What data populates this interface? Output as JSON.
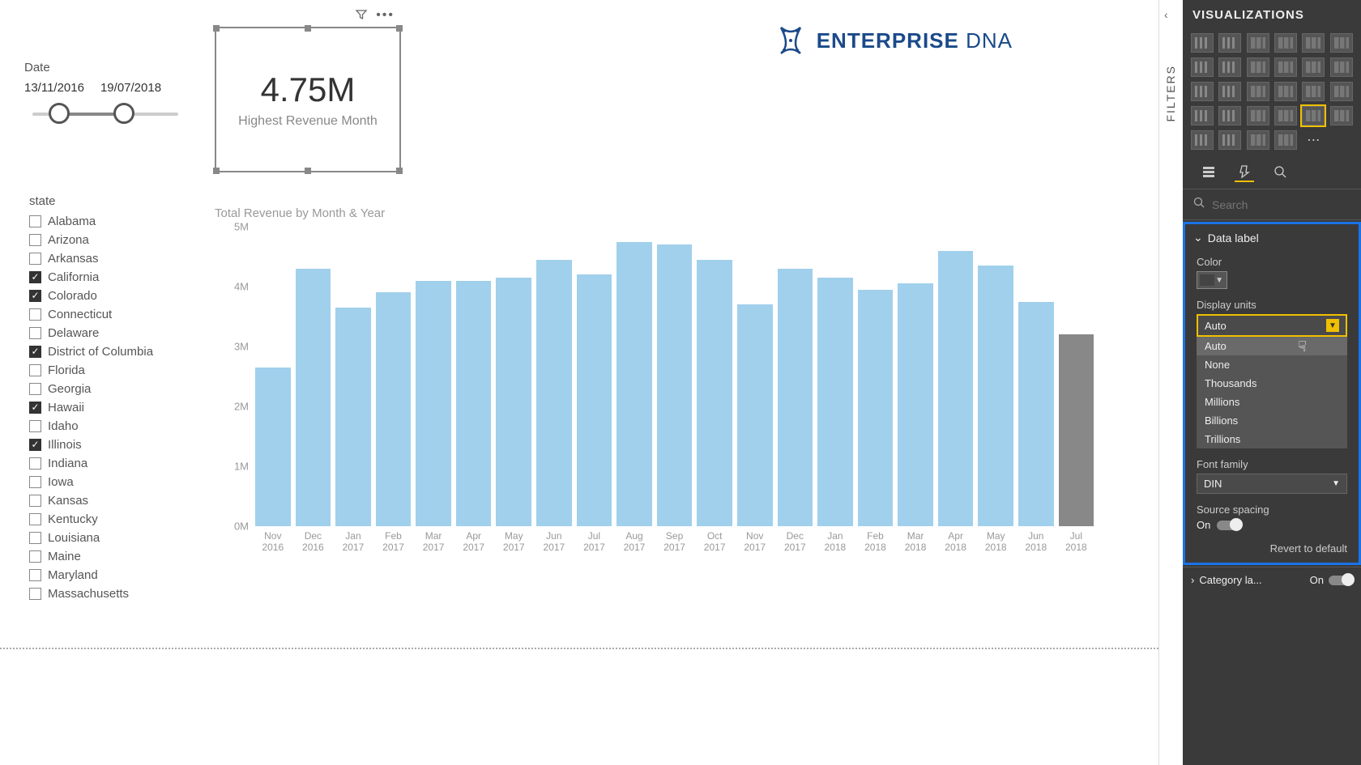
{
  "logo": {
    "brand": "ENTERPRISE",
    "suffix": "DNA",
    "color": "#1a4a8a"
  },
  "date_filter": {
    "label": "Date",
    "start": "13/11/2016",
    "end": "19/07/2018"
  },
  "card": {
    "value": "4.75M",
    "caption": "Highest Revenue Month",
    "border_color": "#888888"
  },
  "state_slicer": {
    "title": "state",
    "items": [
      {
        "label": "Alabama",
        "checked": false
      },
      {
        "label": "Arizona",
        "checked": false
      },
      {
        "label": "Arkansas",
        "checked": false
      },
      {
        "label": "California",
        "checked": true
      },
      {
        "label": "Colorado",
        "checked": true
      },
      {
        "label": "Connecticut",
        "checked": false
      },
      {
        "label": "Delaware",
        "checked": false
      },
      {
        "label": "District of Columbia",
        "checked": true
      },
      {
        "label": "Florida",
        "checked": false
      },
      {
        "label": "Georgia",
        "checked": false
      },
      {
        "label": "Hawaii",
        "checked": true
      },
      {
        "label": "Idaho",
        "checked": false
      },
      {
        "label": "Illinois",
        "checked": true
      },
      {
        "label": "Indiana",
        "checked": false
      },
      {
        "label": "Iowa",
        "checked": false
      },
      {
        "label": "Kansas",
        "checked": false
      },
      {
        "label": "Kentucky",
        "checked": false
      },
      {
        "label": "Louisiana",
        "checked": false
      },
      {
        "label": "Maine",
        "checked": false
      },
      {
        "label": "Maryland",
        "checked": false
      },
      {
        "label": "Massachusetts",
        "checked": false
      }
    ]
  },
  "chart": {
    "type": "bar",
    "title": "Total Revenue by Month & Year",
    "y_ticks": [
      {
        "v": 0,
        "lbl": "0M"
      },
      {
        "v": 1,
        "lbl": "1M"
      },
      {
        "v": 2,
        "lbl": "2M"
      },
      {
        "v": 3,
        "lbl": "3M"
      },
      {
        "v": 4,
        "lbl": "4M"
      },
      {
        "v": 5,
        "lbl": "5M"
      }
    ],
    "y_max": 5,
    "bar_color": "#a0d0ec",
    "bar_color_alt": "#888888",
    "background_color": "#ffffff",
    "label_color": "#999999",
    "label_fontsize": 12,
    "title_fontsize": 15,
    "bars": [
      {
        "m": "Nov",
        "y": "2016",
        "v": 2.65,
        "alt": false
      },
      {
        "m": "Dec",
        "y": "2016",
        "v": 4.3,
        "alt": false
      },
      {
        "m": "Jan",
        "y": "2017",
        "v": 3.65,
        "alt": false
      },
      {
        "m": "Feb",
        "y": "2017",
        "v": 3.9,
        "alt": false
      },
      {
        "m": "Mar",
        "y": "2017",
        "v": 4.1,
        "alt": false
      },
      {
        "m": "Apr",
        "y": "2017",
        "v": 4.1,
        "alt": false
      },
      {
        "m": "May",
        "y": "2017",
        "v": 4.15,
        "alt": false
      },
      {
        "m": "Jun",
        "y": "2017",
        "v": 4.45,
        "alt": false
      },
      {
        "m": "Jul",
        "y": "2017",
        "v": 4.2,
        "alt": false
      },
      {
        "m": "Aug",
        "y": "2017",
        "v": 4.75,
        "alt": false
      },
      {
        "m": "Sep",
        "y": "2017",
        "v": 4.7,
        "alt": false
      },
      {
        "m": "Oct",
        "y": "2017",
        "v": 4.45,
        "alt": false
      },
      {
        "m": "Nov",
        "y": "2017",
        "v": 3.7,
        "alt": false
      },
      {
        "m": "Dec",
        "y": "2017",
        "v": 4.3,
        "alt": false
      },
      {
        "m": "Jan",
        "y": "2018",
        "v": 4.15,
        "alt": false
      },
      {
        "m": "Feb",
        "y": "2018",
        "v": 3.95,
        "alt": false
      },
      {
        "m": "Mar",
        "y": "2018",
        "v": 4.05,
        "alt": false
      },
      {
        "m": "Apr",
        "y": "2018",
        "v": 4.6,
        "alt": false
      },
      {
        "m": "May",
        "y": "2018",
        "v": 4.35,
        "alt": false
      },
      {
        "m": "Jun",
        "y": "2018",
        "v": 3.75,
        "alt": false
      },
      {
        "m": "Jul",
        "y": "2018",
        "v": 3.2,
        "alt": true
      }
    ]
  },
  "filters_pane": {
    "label": "FILTERS"
  },
  "viz_panel": {
    "title": "VISUALIZATIONS",
    "search_placeholder": "Search",
    "data_label_section": "Data label",
    "color_label": "Color",
    "display_units_label": "Display units",
    "display_units_value": "Auto",
    "display_units_options": [
      "Auto",
      "None",
      "Thousands",
      "Millions",
      "Billions",
      "Trillions"
    ],
    "font_family_label": "Font family",
    "font_family_value": "DIN",
    "source_spacing_label": "Source spacing",
    "source_spacing_state": "On",
    "revert_label": "Revert to default",
    "category_label": "Category la...",
    "category_state": "On",
    "highlight_color": "#f0c000",
    "selection_border": "#1a73e8",
    "panel_bg": "#3a3a3a"
  }
}
